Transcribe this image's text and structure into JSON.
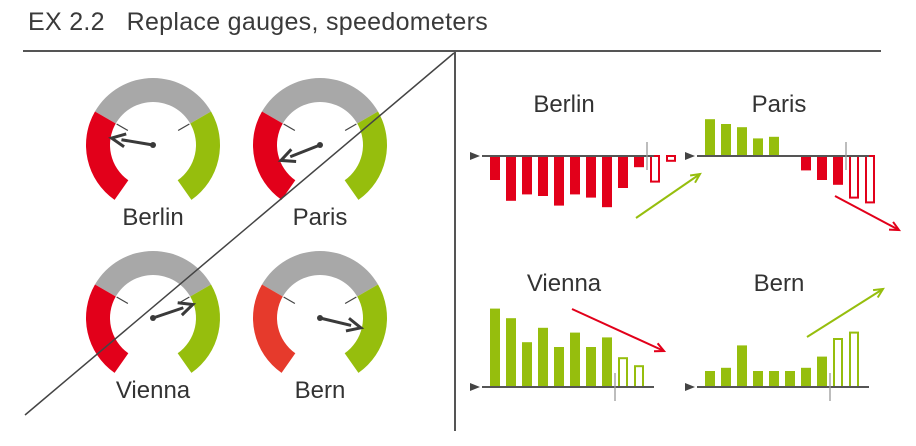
{
  "header": {
    "title": "EX 2.2   Replace gauges, speedometers"
  },
  "colors": {
    "gauge_gray": "#a8a8a8",
    "gauge_red": "#e2001a",
    "gauge_red_light": "#e63a2c",
    "gauge_green": "#96be0d",
    "needle": "#3a3a3a",
    "axis": "#555555",
    "bar_red": "#e2001a",
    "bar_green": "#96be0d"
  },
  "gauges": [
    {
      "label": "Berlin",
      "needle_value": -0.7,
      "red_color": "#e2001a"
    },
    {
      "label": "Paris",
      "needle_value": -0.97,
      "red_color": "#e2001a"
    },
    {
      "label": "Vienna",
      "needle_value": 0.62,
      "red_color": "#e2001a"
    },
    {
      "label": "Bern",
      "needle_value": 0.9,
      "red_color": "#e63a2c"
    }
  ],
  "chart_data": [
    {
      "type": "bar",
      "title": "Berlin",
      "color": "#e2001a",
      "values": [
        -1.5,
        -2.8,
        -2.4,
        -2.5,
        -3.1,
        -2.4,
        -2.6,
        -3.2,
        -2.0,
        -0.7
      ],
      "forecast_values": [
        -1.6,
        -0.3
      ],
      "trend": "up",
      "trend_color": "#96be0d"
    },
    {
      "type": "bar",
      "title": "Paris",
      "color": "#96be0d",
      "values": [
        2.3,
        2.0,
        1.8,
        1.1,
        1.2,
        0,
        -0.9,
        -1.5,
        -1.8
      ],
      "negative_color": "#e2001a",
      "forecast_values": [
        -2.6,
        -2.9
      ],
      "trend": "down",
      "trend_color": "#e2001a"
    },
    {
      "type": "bar",
      "title": "Vienna",
      "color": "#96be0d",
      "values": [
        4.9,
        4.3,
        2.8,
        3.7,
        2.5,
        3.4,
        2.5,
        3.1
      ],
      "forecast_values": [
        1.8,
        1.3
      ],
      "trend": "down",
      "trend_color": "#e2001a"
    },
    {
      "type": "bar",
      "title": "Bern",
      "color": "#96be0d",
      "values": [
        1.0,
        1.2,
        2.6,
        1.0,
        1.0,
        1.0,
        1.2,
        1.9
      ],
      "forecast_values": [
        3.0,
        3.4
      ],
      "trend": "up",
      "trend_color": "#96be0d"
    }
  ]
}
